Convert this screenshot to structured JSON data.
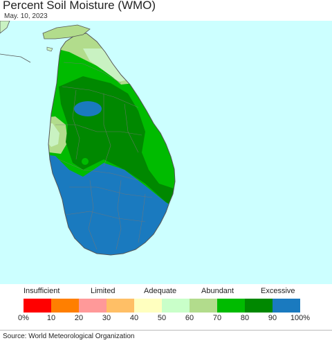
{
  "header": {
    "title": "Percent Soil Moisture (WMO)",
    "date": "May. 10, 2023"
  },
  "map": {
    "region": "Sri Lanka",
    "sea_color": "#ccffff",
    "class_colors": {
      "excessive": "#1a7abf",
      "abundant_high": "#008800",
      "abundant": "#00bb00",
      "adequate_high": "#b2dc8c",
      "adequate": "#c9f2c2"
    }
  },
  "legend": {
    "categories": [
      "Insufficient",
      "Limited",
      "Adequate",
      "Abundant",
      "Excessive"
    ],
    "swatches": [
      "#ff0000",
      "#ff7f00",
      "#ff9999",
      "#ffbf66",
      "#ffffbf",
      "#c9ffc9",
      "#b2dc8c",
      "#00bb00",
      "#008800",
      "#1a7abf"
    ],
    "ticks": [
      "0%",
      "10",
      "20",
      "30",
      "40",
      "50",
      "60",
      "70",
      "80",
      "90",
      "100%"
    ]
  },
  "footer": {
    "source": "Source: World Meteorological Organization"
  }
}
